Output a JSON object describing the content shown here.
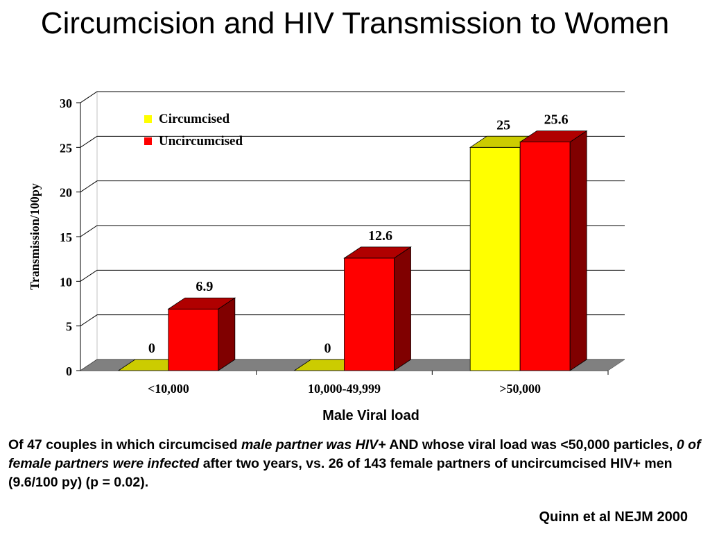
{
  "slide": {
    "title": "Circumcision and HIV Transmission to Women",
    "xlabel": "Male Viral load",
    "body": {
      "p1": "Of 47 couples in which circumcised ",
      "p2": "male partner was HIV+",
      "p3": " AND whose viral load was <50,000 particles, ",
      "p4": "0 of female partners were infected",
      "p5": " after two years, vs. 26 of 143 female partners of uncircumcised HIV+ men (9.6/100 py) (p = 0.02)."
    },
    "citation": "Quinn et al NEJM 2000"
  },
  "chart_data": {
    "type": "bar",
    "categories": [
      "<10,000",
      "10,000-49,999",
      ">50,000"
    ],
    "series": [
      {
        "name": "Circumcised",
        "values": [
          0,
          0,
          25
        ],
        "labels": [
          "0",
          "0",
          "25"
        ],
        "color": "#ffff00",
        "side": "#b8b800",
        "top": "#cccc00"
      },
      {
        "name": "Uncircumcised",
        "values": [
          6.9,
          12.6,
          25.6
        ],
        "labels": [
          "6.9",
          "12.6",
          "25.6"
        ],
        "color": "#ff0000",
        "side": "#800000",
        "top": "#b00000"
      }
    ],
    "xlabel": "Male Viral load",
    "ylabel": "Transmission/100py",
    "ylim": [
      0,
      30
    ],
    "yticks": [
      "0",
      "5",
      "10",
      "15",
      "20",
      "25",
      "30"
    ],
    "grid": true,
    "legend": "top-left",
    "floor_color": "#808080"
  }
}
